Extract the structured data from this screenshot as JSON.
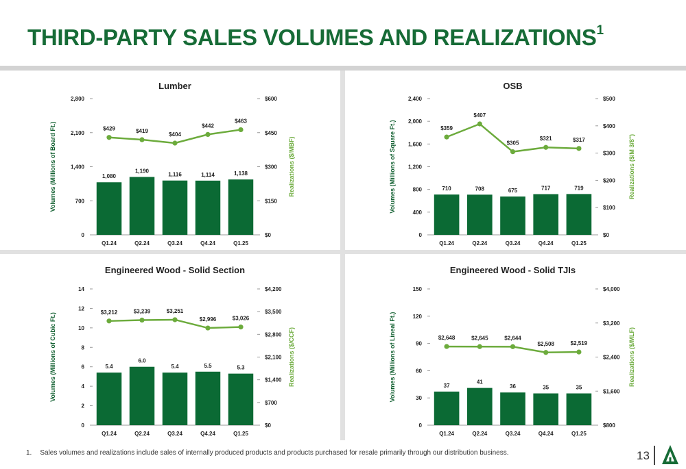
{
  "page": {
    "title": "THIRD-PARTY SALES VOLUMES AND REALIZATIONS",
    "title_superscript": "1",
    "footnote_number": "1.",
    "footnote_text": "Sales volumes and realizations include sales of internally produced products and products purchased for resale primarily through our distribution business.",
    "page_number": "13"
  },
  "colors": {
    "title": "#166b36",
    "bar": "#0b6a34",
    "line": "#6cab3c",
    "right_axis_label": "#6cab3c",
    "left_axis_label": "#0f5e2e",
    "text": "#222222"
  },
  "chart_data": [
    {
      "type": "bar",
      "title": "Lumber",
      "categories": [
        "Q1.24",
        "Q2.24",
        "Q3.24",
        "Q4.24",
        "Q1.25"
      ],
      "series": [
        {
          "type": "bar",
          "axis": "left",
          "values": [
            1080,
            1190,
            1116,
            1114,
            1138
          ],
          "labels": [
            "1,080",
            "1,190",
            "1,116",
            "1,114",
            "1,138"
          ]
        },
        {
          "type": "line",
          "axis": "right",
          "values": [
            429,
            419,
            404,
            442,
            463
          ],
          "labels": [
            "$429",
            "$419",
            "$404",
            "$442",
            "$463"
          ]
        }
      ],
      "ylabel": "Volumes (Millions of Board Ft.)",
      "y2label": "Realizations ($/MBF)",
      "ylim": [
        0,
        2800
      ],
      "y2lim": [
        0,
        600
      ],
      "yticks": [
        0,
        700,
        1400,
        2100,
        2800
      ],
      "ytick_labels": [
        "0",
        "700",
        "1,400",
        "2,100",
        "2,800"
      ],
      "y2ticks": [
        0,
        150,
        300,
        450,
        600
      ],
      "y2tick_labels": [
        "$0",
        "$150",
        "$300",
        "$450",
        "$600"
      ]
    },
    {
      "type": "bar",
      "title": "OSB",
      "categories": [
        "Q1.24",
        "Q2.24",
        "Q3.24",
        "Q4.24",
        "Q1.25"
      ],
      "series": [
        {
          "type": "bar",
          "axis": "left",
          "values": [
            710,
            708,
            675,
            717,
            719
          ],
          "labels": [
            "710",
            "708",
            "675",
            "717",
            "719"
          ]
        },
        {
          "type": "line",
          "axis": "right",
          "values": [
            359,
            407,
            305,
            321,
            317
          ],
          "labels": [
            "$359",
            "$407",
            "$305",
            "$321",
            "$317"
          ]
        }
      ],
      "ylabel": "Volumes (Millions of Square Ft.)",
      "y2label": "Realizations ($/M 3/8\")",
      "ylim": [
        0,
        2400
      ],
      "y2lim": [
        0,
        500
      ],
      "yticks": [
        0,
        400,
        800,
        1200,
        1600,
        2000,
        2400
      ],
      "ytick_labels": [
        "0",
        "400",
        "800",
        "1,200",
        "1,600",
        "2,000",
        "2,400"
      ],
      "y2ticks": [
        0,
        100,
        200,
        300,
        400,
        500
      ],
      "y2tick_labels": [
        "$0",
        "$100",
        "$200",
        "$300",
        "$400",
        "$500"
      ]
    },
    {
      "type": "bar",
      "title": "Engineered Wood - Solid Section",
      "categories": [
        "Q1.24",
        "Q2.24",
        "Q3.24",
        "Q4.24",
        "Q1.25"
      ],
      "series": [
        {
          "type": "bar",
          "axis": "left",
          "values": [
            5.4,
            6.0,
            5.4,
            5.5,
            5.3
          ],
          "labels": [
            "5.4",
            "6.0",
            "5.4",
            "5.5",
            "5.3"
          ]
        },
        {
          "type": "line",
          "axis": "right",
          "values": [
            3212,
            3239,
            3251,
            2996,
            3026
          ],
          "labels": [
            "$3,212",
            "$3,239",
            "$3,251",
            "$2,996",
            "$3,026"
          ]
        }
      ],
      "ylabel": "Volumes (Millions of Cubic Ft.)",
      "y2label": "Realizations ($/CCF)",
      "ylim": [
        0,
        14
      ],
      "y2lim": [
        0,
        4200
      ],
      "yticks": [
        0,
        2,
        4,
        6,
        8,
        10,
        12,
        14
      ],
      "ytick_labels": [
        "0",
        "2",
        "4",
        "6",
        "8",
        "10",
        "12",
        "14"
      ],
      "y2ticks": [
        0,
        700,
        1400,
        2100,
        2800,
        3500,
        4200
      ],
      "y2tick_labels": [
        "$0",
        "$700",
        "$1,400",
        "$2,100",
        "$2,800",
        "$3,500",
        "$4,200"
      ]
    },
    {
      "type": "bar",
      "title": "Engineered Wood - Solid TJIs",
      "categories": [
        "Q1.24",
        "Q2.24",
        "Q3.24",
        "Q4.24",
        "Q1.25"
      ],
      "series": [
        {
          "type": "bar",
          "axis": "left",
          "values": [
            37,
            41,
            36,
            35,
            35
          ],
          "labels": [
            "37",
            "41",
            "36",
            "35",
            "35"
          ]
        },
        {
          "type": "line",
          "axis": "right",
          "values": [
            2648,
            2645,
            2644,
            2508,
            2519
          ],
          "labels": [
            "$2,648",
            "$2,645",
            "$2,644",
            "$2,508",
            "$2,519"
          ]
        }
      ],
      "ylabel": "Volumes (Millions of Lineal Ft.)",
      "y2label": "Realizations ($/MLF)",
      "ylim": [
        0,
        150
      ],
      "y2lim": [
        800,
        4000
      ],
      "yticks": [
        0,
        30,
        60,
        90,
        120,
        150
      ],
      "ytick_labels": [
        "0",
        "30",
        "60",
        "90",
        "120",
        "150"
      ],
      "y2ticks": [
        800,
        1600,
        2400,
        3200,
        4000
      ],
      "y2tick_labels": [
        "$800",
        "$1,600",
        "$2,400",
        "$3,200",
        "$4,000"
      ]
    }
  ]
}
